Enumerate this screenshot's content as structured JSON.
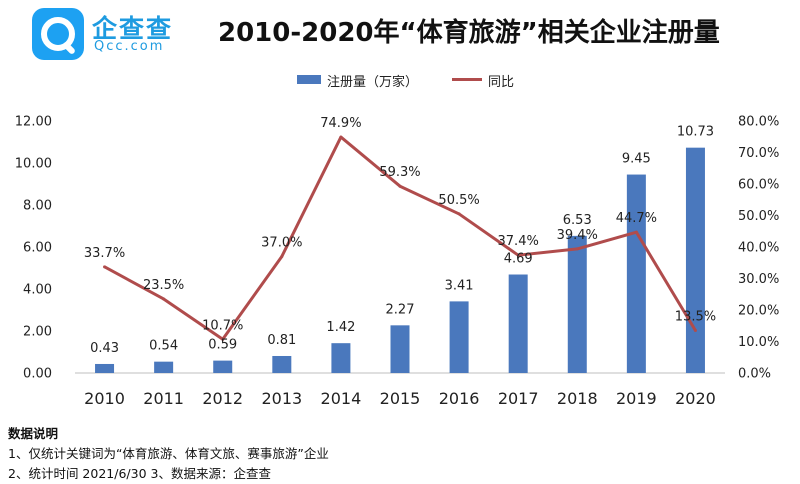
{
  "logo": {
    "name": "企查查",
    "domain": "Qcc.com"
  },
  "chart_data": {
    "type": "bar",
    "title": "2010-2020年“体育旅游”相关企业注册量",
    "categories": [
      "2010",
      "2011",
      "2012",
      "2013",
      "2014",
      "2015",
      "2016",
      "2017",
      "2018",
      "2019",
      "2020"
    ],
    "series": [
      {
        "name": "注册量（万家）",
        "type": "bar",
        "axis": "left",
        "color": "#4a78bd",
        "values": [
          0.43,
          0.54,
          0.59,
          0.81,
          1.42,
          2.27,
          3.41,
          4.69,
          6.53,
          9.45,
          10.73
        ],
        "labels": [
          "0.43",
          "0.54",
          "0.59",
          "0.81",
          "1.42",
          "2.27",
          "3.41",
          "4.69",
          "6.53",
          "9.45",
          "10.73"
        ]
      },
      {
        "name": "同比",
        "type": "line",
        "axis": "right",
        "color": "#b04c4c",
        "values": [
          33.7,
          23.5,
          10.7,
          37.0,
          74.9,
          59.3,
          50.5,
          37.4,
          39.4,
          44.7,
          13.5
        ],
        "labels": [
          "33.7%",
          "23.5%",
          "10.7%",
          "37.0%",
          "74.9%",
          "59.3%",
          "50.5%",
          "37.4%",
          "39.4%",
          "44.7%",
          "13.5%"
        ]
      }
    ],
    "y_left": {
      "min": 0,
      "max": 12,
      "ticks": [
        "0.00",
        "2.00",
        "4.00",
        "6.00",
        "8.00",
        "10.00",
        "12.00"
      ]
    },
    "y_right": {
      "min": 0,
      "max": 80,
      "ticks": [
        "0.0%",
        "10.0%",
        "20.0%",
        "30.0%",
        "40.0%",
        "50.0%",
        "60.0%",
        "70.0%",
        "80.0%"
      ]
    },
    "grid": false,
    "legend_position": "top-center"
  },
  "notes": {
    "title": "数据说明",
    "line1": "1、仅统计关键词为“体育旅游、体育文旅、赛事旅游”企业",
    "line2": "2、统计时间 2021/6/30   3、数据来源：企查查"
  }
}
